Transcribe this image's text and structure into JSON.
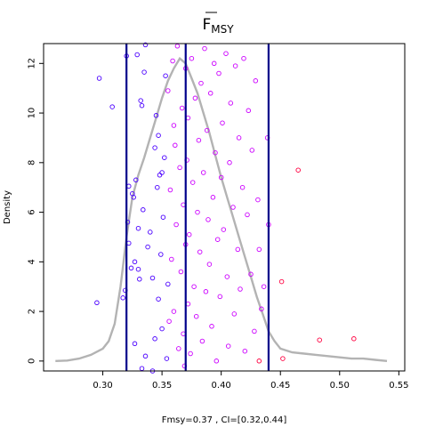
{
  "chart_data": {
    "type": "scatter",
    "title": "F",
    "title_subscript": "MSY",
    "title_overline": true,
    "xlabel": "Fmsy=0.37 , CI=[0.32,0.44]",
    "ylabel": "Density",
    "xlim": [
      0.25,
      0.555
    ],
    "ylim": [
      -0.4,
      12.8
    ],
    "xticks": [
      "0.30",
      "0.35",
      "0.40",
      "0.45",
      "0.50",
      "0.55"
    ],
    "yticks": [
      "0",
      "2",
      "4",
      "6",
      "8",
      "10",
      "12"
    ],
    "grid": false,
    "legend": "none",
    "colors": {
      "density_line": "#b3b3b3",
      "ci_lines": "#00008b",
      "point_low": "#4b00ff",
      "point_mid": "#cc00ff",
      "point_high": "#ff0040"
    },
    "vertical_lines": [
      0.32,
      0.37,
      0.44
    ],
    "density_curve": {
      "x": [
        0.26,
        0.27,
        0.28,
        0.29,
        0.3,
        0.305,
        0.31,
        0.315,
        0.32,
        0.325,
        0.33,
        0.335,
        0.34,
        0.345,
        0.35,
        0.355,
        0.36,
        0.365,
        0.37,
        0.375,
        0.38,
        0.385,
        0.39,
        0.395,
        0.4,
        0.405,
        0.41,
        0.415,
        0.42,
        0.425,
        0.43,
        0.435,
        0.44,
        0.445,
        0.45,
        0.46,
        0.47,
        0.48,
        0.49,
        0.5,
        0.51,
        0.52,
        0.53,
        0.54
      ],
      "y": [
        0.0,
        0.02,
        0.1,
        0.25,
        0.5,
        0.8,
        1.5,
        3.0,
        5.0,
        6.6,
        7.5,
        8.2,
        9.0,
        9.8,
        10.6,
        11.3,
        11.8,
        12.2,
        12.0,
        11.4,
        10.8,
        10.0,
        9.2,
        8.3,
        7.4,
        6.6,
        5.8,
        5.0,
        4.2,
        3.4,
        2.6,
        1.9,
        1.2,
        0.8,
        0.5,
        0.35,
        0.3,
        0.25,
        0.2,
        0.15,
        0.1,
        0.1,
        0.05,
        0.0
      ]
    },
    "points": [
      {
        "x": 0.295,
        "y": 2.35,
        "c": "low"
      },
      {
        "x": 0.297,
        "y": 11.4,
        "c": "low"
      },
      {
        "x": 0.308,
        "y": 10.25,
        "c": "low"
      },
      {
        "x": 0.317,
        "y": 2.55,
        "c": "low"
      },
      {
        "x": 0.319,
        "y": 2.85,
        "c": "low"
      },
      {
        "x": 0.321,
        "y": 5.6,
        "c": "low"
      },
      {
        "x": 0.322,
        "y": 4.75,
        "c": "low"
      },
      {
        "x": 0.322,
        "y": 7.05,
        "c": "low"
      },
      {
        "x": 0.32,
        "y": 12.3,
        "c": "low"
      },
      {
        "x": 0.324,
        "y": 3.75,
        "c": "low"
      },
      {
        "x": 0.325,
        "y": 6.75,
        "c": "low"
      },
      {
        "x": 0.326,
        "y": 6.6,
        "c": "low"
      },
      {
        "x": 0.327,
        "y": 4.0,
        "c": "low"
      },
      {
        "x": 0.328,
        "y": 7.3,
        "c": "low"
      },
      {
        "x": 0.329,
        "y": 12.35,
        "c": "low"
      },
      {
        "x": 0.33,
        "y": 5.35,
        "c": "low"
      },
      {
        "x": 0.33,
        "y": 3.7,
        "c": "low"
      },
      {
        "x": 0.331,
        "y": 3.3,
        "c": "low"
      },
      {
        "x": 0.332,
        "y": 10.5,
        "c": "low"
      },
      {
        "x": 0.333,
        "y": 10.3,
        "c": "low"
      },
      {
        "x": 0.334,
        "y": 6.1,
        "c": "low"
      },
      {
        "x": 0.335,
        "y": 11.65,
        "c": "low"
      },
      {
        "x": 0.336,
        "y": 12.75,
        "c": "low"
      },
      {
        "x": 0.338,
        "y": 4.6,
        "c": "low"
      },
      {
        "x": 0.34,
        "y": 5.2,
        "c": "low"
      },
      {
        "x": 0.342,
        "y": 3.35,
        "c": "low"
      },
      {
        "x": 0.344,
        "y": 8.6,
        "c": "low"
      },
      {
        "x": 0.345,
        "y": 9.9,
        "c": "low"
      },
      {
        "x": 0.346,
        "y": 7.0,
        "c": "low"
      },
      {
        "x": 0.347,
        "y": 9.1,
        "c": "low"
      },
      {
        "x": 0.348,
        "y": 7.5,
        "c": "low"
      },
      {
        "x": 0.349,
        "y": 4.3,
        "c": "low"
      },
      {
        "x": 0.35,
        "y": 7.6,
        "c": "low"
      },
      {
        "x": 0.327,
        "y": 0.7,
        "c": "low"
      },
      {
        "x": 0.333,
        "y": -0.3,
        "c": "low"
      },
      {
        "x": 0.336,
        "y": 0.2,
        "c": "low"
      },
      {
        "x": 0.342,
        "y": -0.4,
        "c": "low"
      },
      {
        "x": 0.344,
        "y": 0.9,
        "c": "low"
      },
      {
        "x": 0.347,
        "y": 2.5,
        "c": "low"
      },
      {
        "x": 0.35,
        "y": 1.3,
        "c": "low"
      },
      {
        "x": 0.351,
        "y": 5.8,
        "c": "low"
      },
      {
        "x": 0.352,
        "y": 8.2,
        "c": "low"
      },
      {
        "x": 0.353,
        "y": 11.5,
        "c": "low"
      },
      {
        "x": 0.354,
        "y": 0.1,
        "c": "low"
      },
      {
        "x": 0.355,
        "y": 3.1,
        "c": "low"
      },
      {
        "x": 0.355,
        "y": 10.9,
        "c": "mid"
      },
      {
        "x": 0.356,
        "y": 1.6,
        "c": "mid"
      },
      {
        "x": 0.357,
        "y": 6.9,
        "c": "mid"
      },
      {
        "x": 0.358,
        "y": 4.1,
        "c": "mid"
      },
      {
        "x": 0.359,
        "y": 12.1,
        "c": "mid"
      },
      {
        "x": 0.36,
        "y": 9.5,
        "c": "mid"
      },
      {
        "x": 0.36,
        "y": 2.0,
        "c": "mid"
      },
      {
        "x": 0.361,
        "y": 8.7,
        "c": "mid"
      },
      {
        "x": 0.362,
        "y": 5.5,
        "c": "mid"
      },
      {
        "x": 0.363,
        "y": 12.7,
        "c": "mid"
      },
      {
        "x": 0.364,
        "y": 0.5,
        "c": "mid"
      },
      {
        "x": 0.365,
        "y": 7.8,
        "c": "mid"
      },
      {
        "x": 0.366,
        "y": 3.6,
        "c": "mid"
      },
      {
        "x": 0.367,
        "y": 10.2,
        "c": "mid"
      },
      {
        "x": 0.368,
        "y": 1.1,
        "c": "mid"
      },
      {
        "x": 0.368,
        "y": 6.3,
        "c": "mid"
      },
      {
        "x": 0.369,
        "y": -0.2,
        "c": "mid"
      },
      {
        "x": 0.37,
        "y": 4.7,
        "c": "mid"
      },
      {
        "x": 0.37,
        "y": 11.8,
        "c": "mid"
      },
      {
        "x": 0.371,
        "y": 8.1,
        "c": "mid"
      },
      {
        "x": 0.372,
        "y": 2.3,
        "c": "mid"
      },
      {
        "x": 0.372,
        "y": 9.8,
        "c": "mid"
      },
      {
        "x": 0.373,
        "y": 5.1,
        "c": "mid"
      },
      {
        "x": 0.374,
        "y": 0.3,
        "c": "mid"
      },
      {
        "x": 0.375,
        "y": 12.2,
        "c": "mid"
      },
      {
        "x": 0.376,
        "y": 7.2,
        "c": "mid"
      },
      {
        "x": 0.377,
        "y": 3.0,
        "c": "mid"
      },
      {
        "x": 0.378,
        "y": 10.6,
        "c": "mid"
      },
      {
        "x": 0.379,
        "y": 1.8,
        "c": "mid"
      },
      {
        "x": 0.38,
        "y": 6.0,
        "c": "mid"
      },
      {
        "x": 0.381,
        "y": 8.9,
        "c": "mid"
      },
      {
        "x": 0.382,
        "y": 4.4,
        "c": "mid"
      },
      {
        "x": 0.383,
        "y": 11.2,
        "c": "mid"
      },
      {
        "x": 0.384,
        "y": 0.8,
        "c": "mid"
      },
      {
        "x": 0.385,
        "y": 7.6,
        "c": "mid"
      },
      {
        "x": 0.386,
        "y": 12.6,
        "c": "mid"
      },
      {
        "x": 0.387,
        "y": 2.8,
        "c": "mid"
      },
      {
        "x": 0.388,
        "y": 9.3,
        "c": "mid"
      },
      {
        "x": 0.389,
        "y": 5.7,
        "c": "mid"
      },
      {
        "x": 0.39,
        "y": 3.9,
        "c": "mid"
      },
      {
        "x": 0.391,
        "y": 10.8,
        "c": "mid"
      },
      {
        "x": 0.392,
        "y": 1.4,
        "c": "mid"
      },
      {
        "x": 0.393,
        "y": 6.6,
        "c": "mid"
      },
      {
        "x": 0.394,
        "y": 12.0,
        "c": "mid"
      },
      {
        "x": 0.395,
        "y": 8.4,
        "c": "mid"
      },
      {
        "x": 0.396,
        "y": 0.0,
        "c": "mid"
      },
      {
        "x": 0.397,
        "y": 4.9,
        "c": "mid"
      },
      {
        "x": 0.398,
        "y": 11.6,
        "c": "mid"
      },
      {
        "x": 0.399,
        "y": 2.6,
        "c": "mid"
      },
      {
        "x": 0.4,
        "y": 7.4,
        "c": "mid"
      },
      {
        "x": 0.401,
        "y": 9.6,
        "c": "mid"
      },
      {
        "x": 0.402,
        "y": 5.3,
        "c": "mid"
      },
      {
        "x": 0.404,
        "y": 12.4,
        "c": "mid"
      },
      {
        "x": 0.405,
        "y": 3.4,
        "c": "mid"
      },
      {
        "x": 0.406,
        "y": 0.6,
        "c": "mid"
      },
      {
        "x": 0.407,
        "y": 8.0,
        "c": "mid"
      },
      {
        "x": 0.408,
        "y": 10.4,
        "c": "mid"
      },
      {
        "x": 0.41,
        "y": 6.2,
        "c": "mid"
      },
      {
        "x": 0.411,
        "y": 1.9,
        "c": "mid"
      },
      {
        "x": 0.412,
        "y": 11.9,
        "c": "mid"
      },
      {
        "x": 0.414,
        "y": 4.5,
        "c": "mid"
      },
      {
        "x": 0.415,
        "y": 9.0,
        "c": "mid"
      },
      {
        "x": 0.416,
        "y": 2.9,
        "c": "mid"
      },
      {
        "x": 0.418,
        "y": 7.0,
        "c": "mid"
      },
      {
        "x": 0.419,
        "y": 12.2,
        "c": "mid"
      },
      {
        "x": 0.42,
        "y": 0.4,
        "c": "mid"
      },
      {
        "x": 0.422,
        "y": 5.9,
        "c": "mid"
      },
      {
        "x": 0.423,
        "y": 10.1,
        "c": "mid"
      },
      {
        "x": 0.425,
        "y": 3.5,
        "c": "mid"
      },
      {
        "x": 0.426,
        "y": 8.5,
        "c": "mid"
      },
      {
        "x": 0.428,
        "y": 1.2,
        "c": "mid"
      },
      {
        "x": 0.429,
        "y": 11.3,
        "c": "mid"
      },
      {
        "x": 0.431,
        "y": 6.5,
        "c": "mid"
      },
      {
        "x": 0.432,
        "y": 4.5,
        "c": "mid"
      },
      {
        "x": 0.434,
        "y": 2.1,
        "c": "mid"
      },
      {
        "x": 0.436,
        "y": 3.0,
        "c": "mid"
      },
      {
        "x": 0.439,
        "y": 9.0,
        "c": "mid"
      },
      {
        "x": 0.44,
        "y": 5.5,
        "c": "mid"
      },
      {
        "x": 0.432,
        "y": 0.0,
        "c": "high"
      },
      {
        "x": 0.451,
        "y": 3.2,
        "c": "high"
      },
      {
        "x": 0.452,
        "y": 0.1,
        "c": "high"
      },
      {
        "x": 0.465,
        "y": 7.7,
        "c": "high"
      },
      {
        "x": 0.483,
        "y": 0.85,
        "c": "high"
      },
      {
        "x": 0.512,
        "y": 0.9,
        "c": "high"
      }
    ]
  }
}
